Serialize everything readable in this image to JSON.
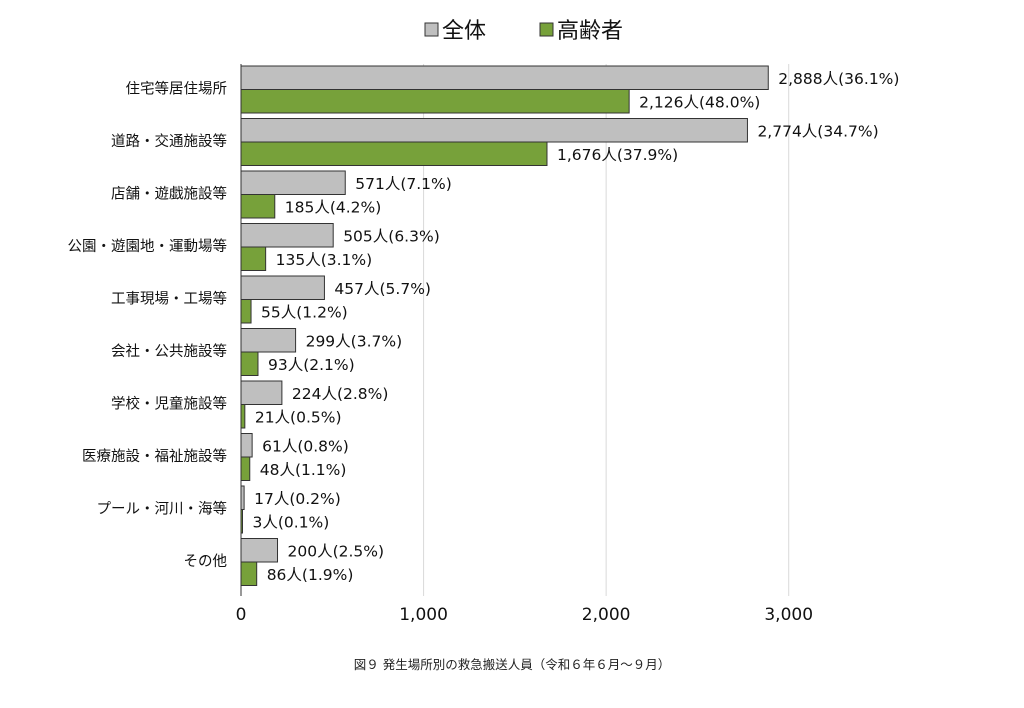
{
  "chart_data": {
    "type": "bar",
    "orientation": "horizontal",
    "categories": [
      "住宅等居住場所",
      "道路・交通施設等",
      "店舗・遊戯施設等",
      "公園・遊園地・運動場等",
      "工事現場・工場等",
      "会社・公共施設等",
      "学校・児童施設等",
      "医療施設・福祉施設等",
      "プール・河川・海等",
      "その他"
    ],
    "series": [
      {
        "name": "全体",
        "color": "#bfbfbf",
        "values": [
          2888,
          2774,
          571,
          505,
          457,
          299,
          224,
          61,
          17,
          200
        ],
        "labels": [
          "2,888人(36.1%)",
          "2,774人(34.7%)",
          "571人(7.1%)",
          "505人(6.3%)",
          "457人(5.7%)",
          "299人(3.7%)",
          "224人(2.8%)",
          "61人(0.8%)",
          "17人(0.2%)",
          "200人(2.5%)"
        ]
      },
      {
        "name": "高齢者",
        "color": "#77a13a",
        "values": [
          2126,
          1676,
          185,
          135,
          55,
          93,
          21,
          48,
          3,
          86
        ],
        "labels": [
          "2,126人(48.0%)",
          "1,676人(37.9%)",
          "185人(4.2%)",
          "135人(3.1%)",
          "55人(1.2%)",
          "93人(2.1%)",
          "21人(0.5%)",
          "48人(1.1%)",
          "3人(0.1%)",
          "86人(1.9%)"
        ]
      }
    ],
    "x_ticks": [
      0,
      1000,
      2000,
      3000
    ],
    "x_tick_labels": [
      "0",
      "1,000",
      "2,000",
      "3,000"
    ],
    "xlim": [
      0,
      3500
    ],
    "grid": true,
    "legend_position": "top-center"
  },
  "caption": "図９ 発生場所別の救急搬送人員（令和６年６月～９月）"
}
